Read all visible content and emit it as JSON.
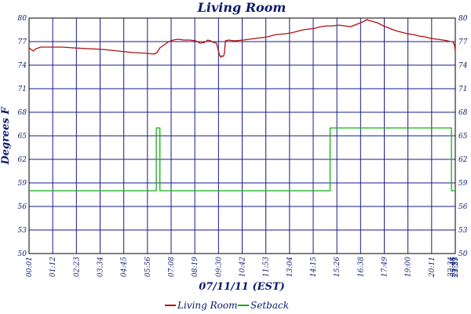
{
  "chart_data": {
    "type": "line",
    "title": "Living Room",
    "xlabel": "07/11/11 (EST)",
    "ylabel": "Degrees F",
    "ylim": [
      50,
      80
    ],
    "y_ticks": [
      "50",
      "53",
      "56",
      "59",
      "62",
      "65",
      "68",
      "71",
      "74",
      "77",
      "80"
    ],
    "x_tick_labels": [
      "00:01",
      "01:12",
      "02:23",
      "03:34",
      "04:45",
      "05:56",
      "07:08",
      "08:19",
      "09:30",
      "10:42",
      "11:53",
      "13:04",
      "14:15",
      "15:26",
      "16:38",
      "17:49",
      "19:00",
      "20:11",
      "21:23",
      "22:34",
      "23:46",
      "23:51"
    ],
    "x_minutes_range": [
      1,
      1431
    ],
    "grid": true,
    "legend_placement": "bottom-center",
    "series": [
      {
        "name": "Living Room",
        "color": "#b01010",
        "x_minutes": [
          1,
          8,
          15,
          25,
          40,
          70,
          110,
          150,
          200,
          250,
          300,
          350,
          400,
          420,
          430,
          440,
          455,
          470,
          485,
          500,
          520,
          540,
          560,
          575,
          590,
          600,
          610,
          620,
          630,
          640,
          645,
          648,
          652,
          656,
          660,
          670,
          690,
          720,
          760,
          800,
          830,
          860,
          880,
          900,
          920,
          940,
          960,
          980,
          1000,
          1020,
          1040,
          1060,
          1080,
          1100,
          1120,
          1135,
          1140,
          1150,
          1170,
          1190,
          1210,
          1230,
          1250,
          1270,
          1290,
          1310,
          1330,
          1350,
          1370,
          1390,
          1405,
          1415,
          1422,
          1428,
          1431
        ],
        "values": [
          76.2,
          76.0,
          75.8,
          76.1,
          76.3,
          76.3,
          76.3,
          76.2,
          76.1,
          76.0,
          75.8,
          75.6,
          75.5,
          75.4,
          75.6,
          76.2,
          76.6,
          77.0,
          77.2,
          77.3,
          77.2,
          77.2,
          77.1,
          76.8,
          76.9,
          77.2,
          77.1,
          76.9,
          76.8,
          75.3,
          75.0,
          75.2,
          75.1,
          75.4,
          77.1,
          77.2,
          77.1,
          77.2,
          77.4,
          77.6,
          77.9,
          78.0,
          78.1,
          78.3,
          78.5,
          78.6,
          78.7,
          78.9,
          79.0,
          79.0,
          79.1,
          79.0,
          78.9,
          79.2,
          79.5,
          79.8,
          79.7,
          79.6,
          79.4,
          79.0,
          78.7,
          78.4,
          78.2,
          78.0,
          77.9,
          77.7,
          77.6,
          77.4,
          77.3,
          77.2,
          77.1,
          77.0,
          77.0,
          76.6,
          75.8
        ]
      },
      {
        "name": "Setback",
        "color": "#14b014",
        "x_minutes": [
          1,
          428,
          428,
          440,
          440,
          1011,
          1011,
          1418,
          1418,
          1431
        ],
        "values": [
          58,
          58,
          66,
          66,
          58,
          58,
          66,
          66,
          58,
          58
        ]
      }
    ]
  }
}
